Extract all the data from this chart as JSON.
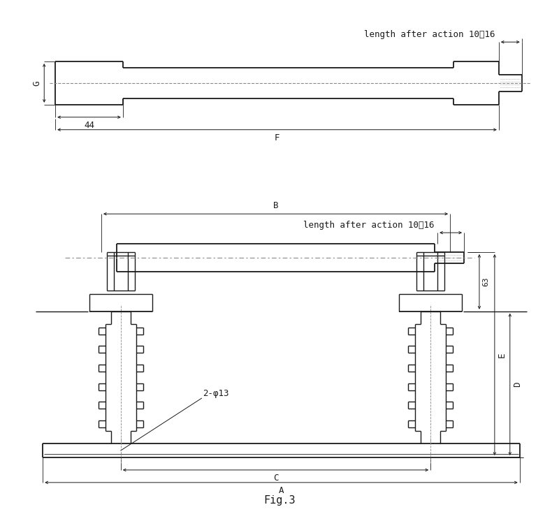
{
  "bg_color": "#ffffff",
  "lc": "#1a1a1a",
  "dc": "#1a1a1a",
  "fig_width": 8.0,
  "fig_height": 7.56,
  "font_size": 9,
  "font_family": "DejaVu Sans Mono",
  "label_action": "length after action 10～16",
  "label_G": "G",
  "label_F": "F",
  "label_44": "44",
  "label_B": "B",
  "label_A": "A",
  "label_C": "C",
  "label_D": "D",
  "label_E": "E",
  "label_63": "63",
  "label_2phi13": "2-φ13",
  "fig3_label": "Fig.3"
}
